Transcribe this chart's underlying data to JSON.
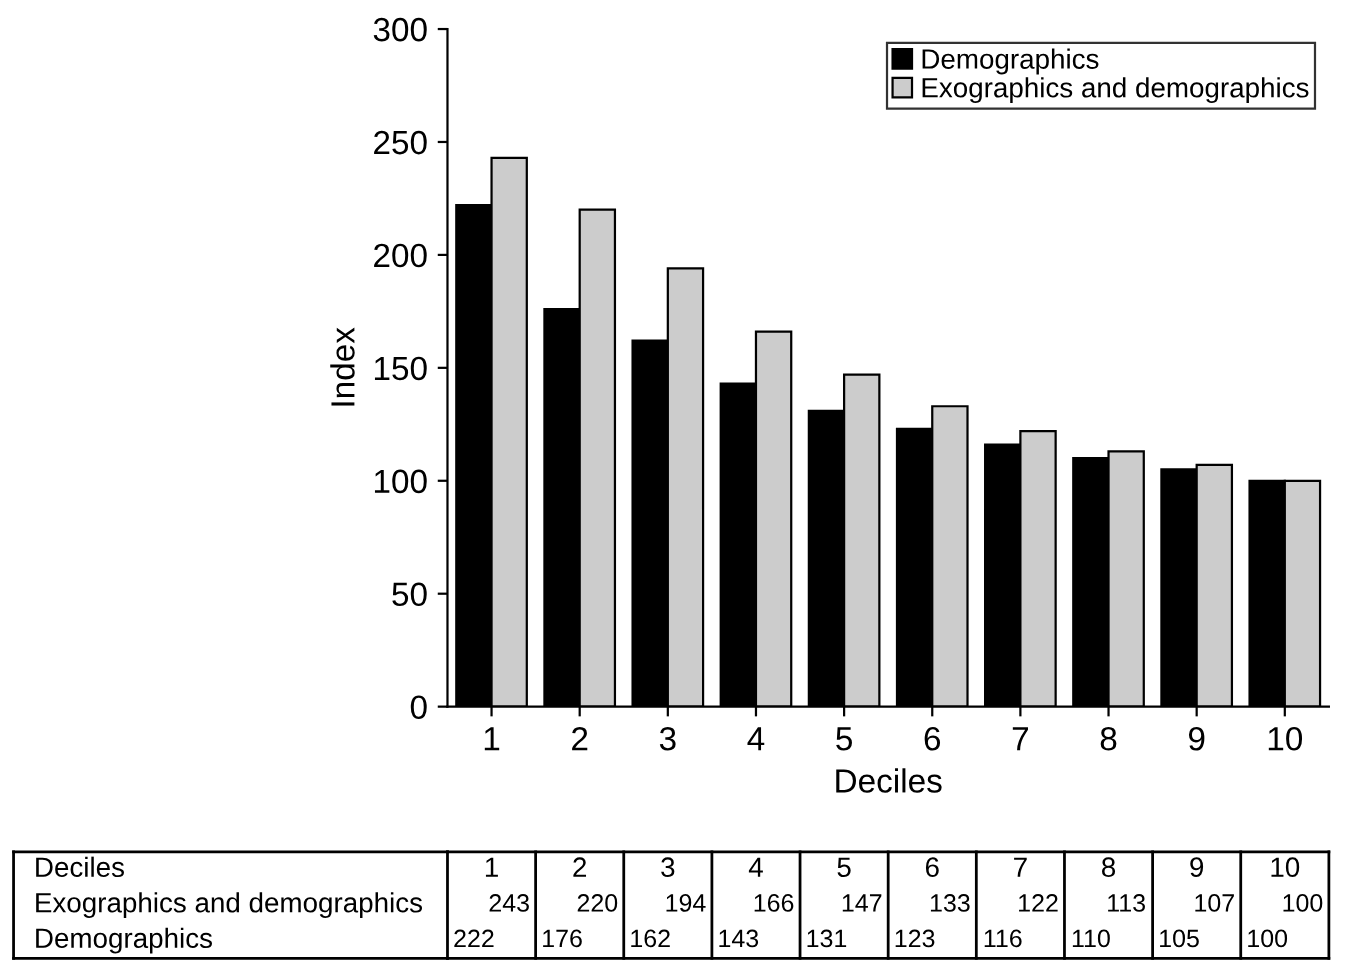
{
  "chart_data": {
    "type": "bar",
    "xlabel": "Deciles",
    "ylabel": "Index",
    "categories": [
      "1",
      "2",
      "3",
      "4",
      "5",
      "6",
      "7",
      "8",
      "9",
      "10"
    ],
    "series": [
      {
        "name": "Demographics",
        "color": "#000000",
        "values": [
          222,
          176,
          162,
          143,
          131,
          123,
          116,
          110,
          105,
          100
        ]
      },
      {
        "name": "Exographics and demographics",
        "color": "#cccccc",
        "values": [
          243,
          220,
          194,
          166,
          147,
          133,
          122,
          113,
          107,
          100
        ]
      }
    ],
    "ylim": [
      0,
      300
    ],
    "yticks": [
      0,
      50,
      100,
      150,
      200,
      250,
      300
    ],
    "grid": false,
    "legend": "top right",
    "data_labels": true
  }
}
